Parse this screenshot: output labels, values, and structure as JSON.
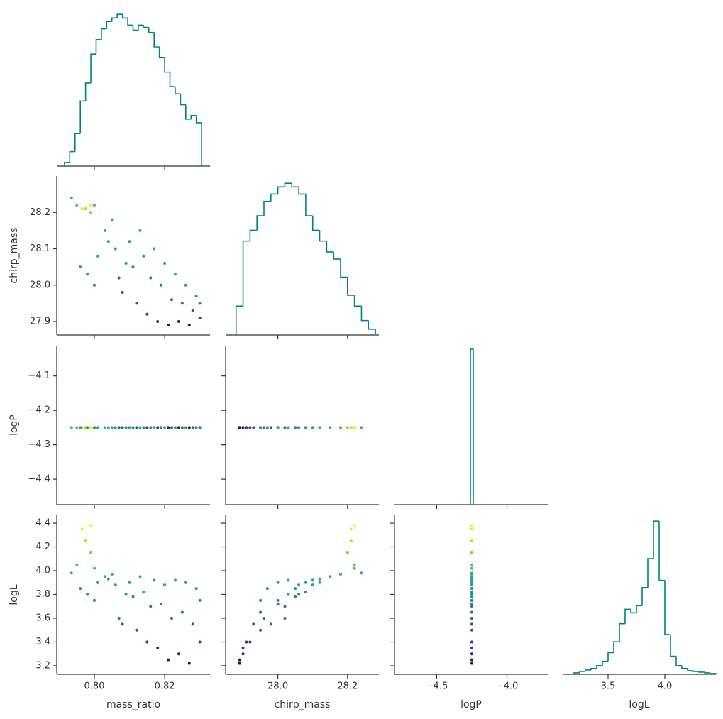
{
  "chart_data": {
    "type": "corner",
    "color": "#008080",
    "cmap": "viridis",
    "color_by": "logL",
    "variables": [
      {
        "name": "mass_ratio",
        "xlim": [
          0.7893,
          0.8329
        ],
        "xticks": [
          {
            "value": 0.8,
            "label": "0.80"
          },
          {
            "value": 0.82,
            "label": "0.82"
          }
        ],
        "bins": [
          0.7915,
          0.793,
          0.7945,
          0.796,
          0.7975,
          0.799,
          0.8005,
          0.802,
          0.8035,
          0.805,
          0.8065,
          0.808,
          0.8095,
          0.811,
          0.8125,
          0.814,
          0.8155,
          0.817,
          0.8185,
          0.82,
          0.8215,
          0.823,
          0.8245,
          0.826,
          0.8275,
          0.829,
          0.8305
        ],
        "counts": [
          5,
          20,
          45,
          90,
          115,
          155,
          175,
          190,
          200,
          205,
          210,
          205,
          195,
          188,
          195,
          192,
          185,
          165,
          150,
          130,
          110,
          100,
          85,
          65,
          70,
          60
        ],
        "hist_ylim": [
          0,
          220
        ]
      },
      {
        "name": "chirp_mass",
        "xlim": [
          27.85,
          28.29
        ],
        "ylim": [
          27.863,
          28.3
        ],
        "xticks": [
          {
            "value": 28.0,
            "label": "28.0"
          },
          28.2
        ],
        "yticks": [
          27.9,
          {
            "value": 28.0,
            "label": "28.0"
          },
          28.1,
          28.2
        ],
        "bins": [
          27.88,
          27.9,
          27.92,
          27.94,
          27.96,
          27.98,
          28.0,
          28.02,
          28.04,
          28.06,
          28.08,
          28.1,
          28.12,
          28.14,
          28.16,
          28.18,
          28.2,
          28.22,
          28.24,
          28.26,
          28.28
        ],
        "counts": [
          40,
          130,
          145,
          165,
          185,
          195,
          205,
          210,
          205,
          195,
          165,
          145,
          130,
          115,
          105,
          80,
          55,
          40,
          20,
          8
        ],
        "hist_ylim": [
          0,
          220
        ]
      },
      {
        "name": "logP",
        "xlim": [
          -4.8,
          -3.71
        ],
        "ylim": [
          -4.474,
          -4.012
        ],
        "xticks": [
          {
            "value": -4.5,
            "label": "−4.5"
          },
          {
            "value": -4.0,
            "label": "−4.0"
          }
        ],
        "yticks": [
          {
            "value": -4.4,
            "label": "−4.4"
          },
          {
            "value": -4.3,
            "label": "−4.3"
          },
          {
            "value": -4.2,
            "label": "−4.2"
          },
          {
            "value": -4.1,
            "label": "−4.1"
          }
        ],
        "bins": [
          -4.26,
          -4.24
        ],
        "counts": [
          215
        ],
        "hist_ylim": [
          0,
          220
        ]
      },
      {
        "name": "logL",
        "xlim": [
          3.1,
          4.45
        ],
        "ylim": [
          3.128,
          4.466
        ],
        "xticks": [
          3.5,
          {
            "value": 4.0,
            "label": "4.0"
          }
        ],
        "yticks": [
          3.2,
          3.4,
          3.6,
          3.8,
          {
            "value": 4.0,
            "label": "4.0"
          },
          4.2,
          4.4
        ],
        "bins": [
          3.2,
          3.25,
          3.3,
          3.35,
          3.4,
          3.45,
          3.5,
          3.55,
          3.6,
          3.65,
          3.7,
          3.75,
          3.8,
          3.85,
          3.9,
          3.95,
          4.0,
          4.05,
          4.1,
          4.15,
          4.2,
          4.25,
          4.3,
          4.35,
          4.4,
          4.45
        ],
        "counts": [
          2,
          4,
          6,
          8,
          12,
          18,
          30,
          45,
          70,
          90,
          85,
          95,
          120,
          160,
          212,
          130,
          55,
          25,
          12,
          8,
          5,
          4,
          3,
          2,
          1
        ],
        "hist_ylim": [
          0,
          220
        ]
      }
    ],
    "samples": [
      [
        0.7935,
        0.795,
        0.7965,
        0.7975,
        0.799,
        0.8,
        0.796,
        0.798,
        0.8,
        0.801,
        0.803,
        0.805,
        0.806,
        0.807,
        0.808,
        0.81,
        0.811,
        0.812,
        0.813,
        0.814,
        0.815,
        0.816,
        0.817,
        0.818,
        0.819,
        0.82,
        0.821,
        0.822,
        0.823,
        0.824,
        0.825,
        0.826,
        0.827,
        0.828,
        0.829,
        0.83,
        0.83,
        0.799,
        0.804,
        0.809
      ],
      [
        28.24,
        28.22,
        28.21,
        28.21,
        28.2,
        28.22,
        28.05,
        28.03,
        28.0,
        28.08,
        28.15,
        28.18,
        28.1,
        28.02,
        27.98,
        28.12,
        28.05,
        27.95,
        28.15,
        28.08,
        27.92,
        28.02,
        28.1,
        27.9,
        28.0,
        28.06,
        27.89,
        27.96,
        28.03,
        27.9,
        27.95,
        28.0,
        27.89,
        27.93,
        27.97,
        27.91,
        27.95,
        28.22,
        28.12,
        28.06
      ],
      [
        -4.25,
        -4.25,
        -4.25,
        -4.25,
        -4.25,
        -4.25,
        -4.25,
        -4.25,
        -4.25,
        -4.25,
        -4.25,
        -4.25,
        -4.25,
        -4.25,
        -4.25,
        -4.25,
        -4.25,
        -4.25,
        -4.25,
        -4.25,
        -4.25,
        -4.25,
        -4.25,
        -4.25,
        -4.25,
        -4.25,
        -4.25,
        -4.25,
        -4.25,
        -4.25,
        -4.25,
        -4.25,
        -4.25,
        -4.25,
        -4.25,
        -4.25,
        -4.25,
        -4.25,
        -4.25,
        -4.25
      ],
      [
        3.98,
        4.05,
        4.35,
        4.25,
        4.15,
        4.02,
        3.85,
        3.8,
        3.75,
        3.9,
        3.95,
        3.97,
        3.88,
        3.6,
        3.55,
        3.9,
        3.78,
        3.5,
        3.95,
        3.82,
        3.4,
        3.7,
        3.92,
        3.35,
        3.72,
        3.88,
        3.25,
        3.6,
        3.92,
        3.3,
        3.65,
        3.9,
        3.22,
        3.55,
        3.85,
        3.4,
        3.75,
        4.38,
        3.93,
        3.8
      ]
    ]
  }
}
